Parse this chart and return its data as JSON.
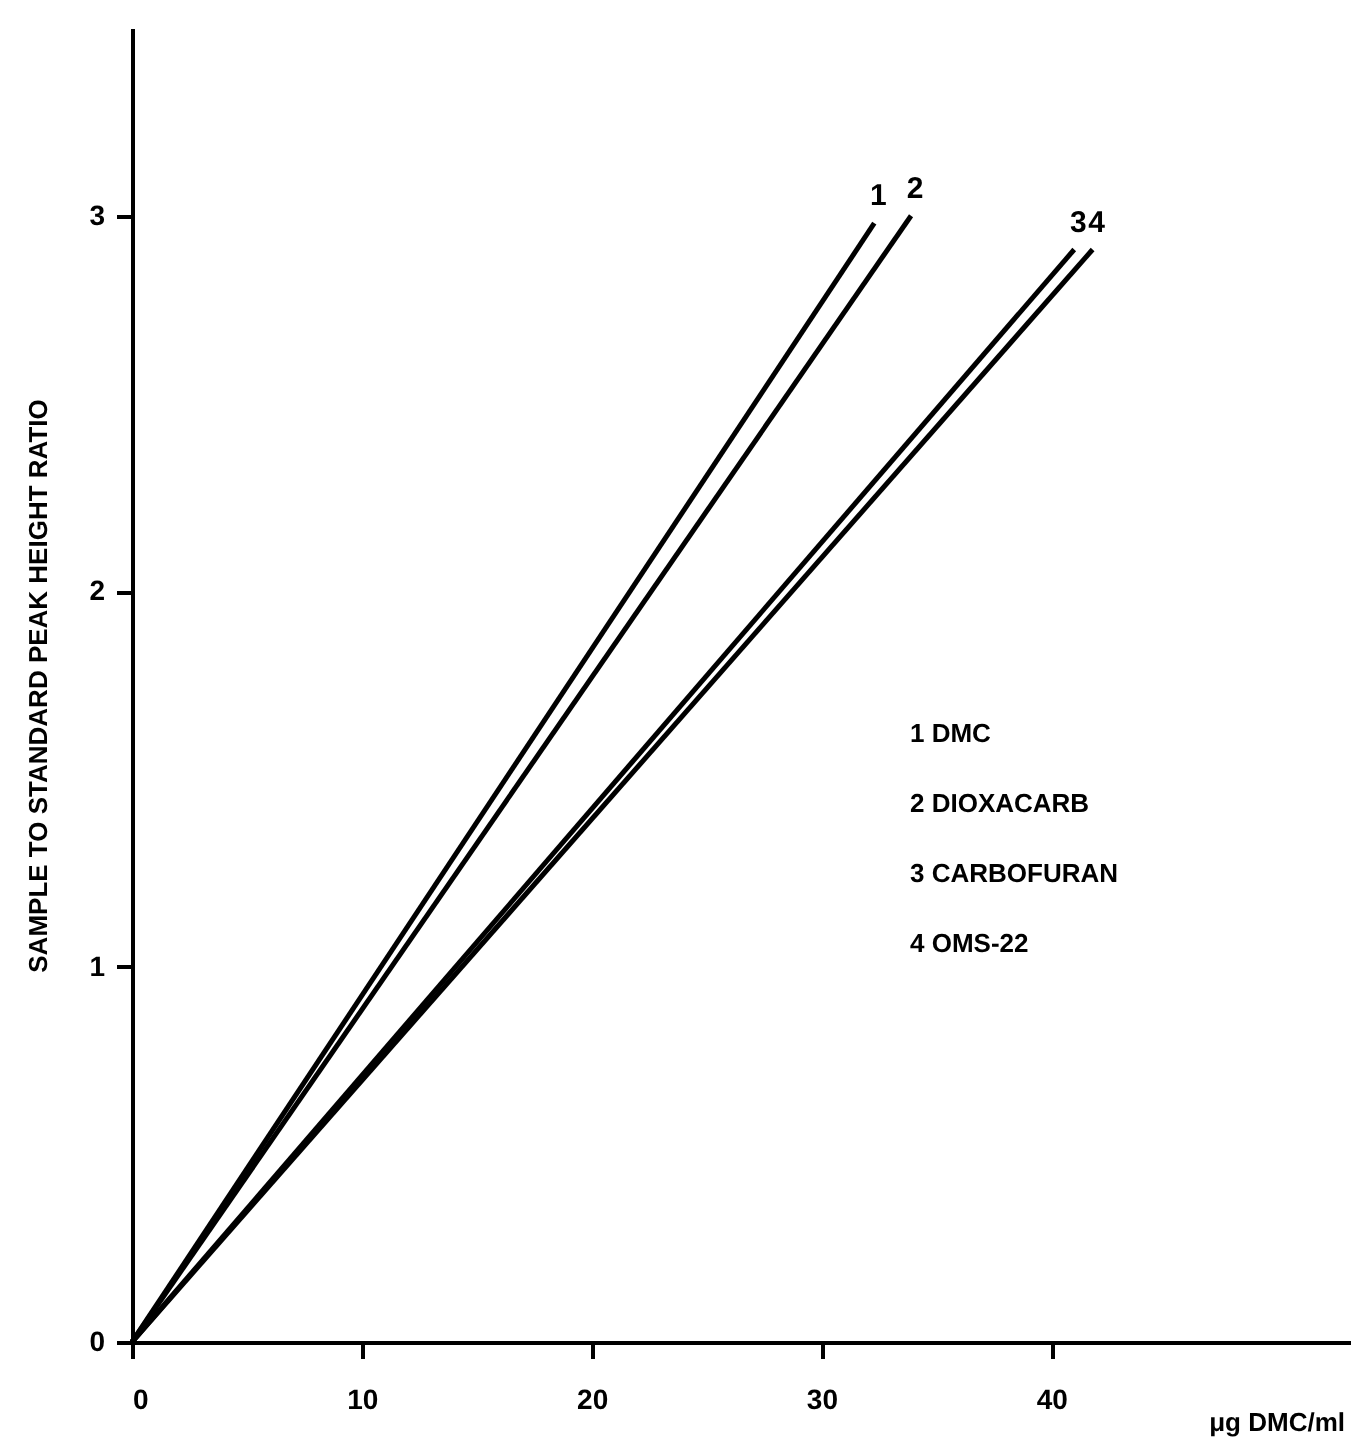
{
  "chart_data": {
    "type": "line",
    "xlabel": "μg DMC/ml",
    "ylabel": "SAMPLE  TO  STANDARD  PEAK HEIGHT  RATIO",
    "xlim": [
      0,
      53
    ],
    "ylim": [
      0,
      3.5
    ],
    "xticks": [
      0,
      10,
      20,
      30,
      40
    ],
    "yticks": [
      0,
      1,
      2,
      3
    ],
    "grid": false,
    "marker": "none",
    "line_style": "solid",
    "series": [
      {
        "name": "1",
        "color": "#000000",
        "x": [
          0,
          32.3
        ],
        "values": [
          0,
          2.98
        ]
      },
      {
        "name": "2",
        "color": "#000000",
        "x": [
          0,
          33.9
        ],
        "values": [
          0,
          3.0
        ]
      },
      {
        "name": "3",
        "color": "#000000",
        "x": [
          0,
          41.0
        ],
        "values": [
          0,
          2.91
        ]
      },
      {
        "name": "4",
        "color": "#000000",
        "x": [
          0,
          41.8
        ],
        "values": [
          0,
          2.91
        ]
      }
    ],
    "annotations": [
      "1    DMC",
      "2    DIOXACARB",
      "3    CARBOFURAN",
      "4    OMS-22"
    ]
  }
}
